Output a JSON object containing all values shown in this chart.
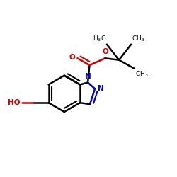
{
  "bg_color": "#ffffff",
  "bond_color": "#000000",
  "n_color": "#0000cc",
  "o_color": "#cc0000",
  "bond_lw": 1.8,
  "fig_size": [
    2.5,
    2.5
  ],
  "dpi": 100,
  "font_size": 7.5,
  "font_size_small": 6.5,
  "xlim": [
    0,
    1
  ],
  "ylim": [
    0,
    1
  ]
}
